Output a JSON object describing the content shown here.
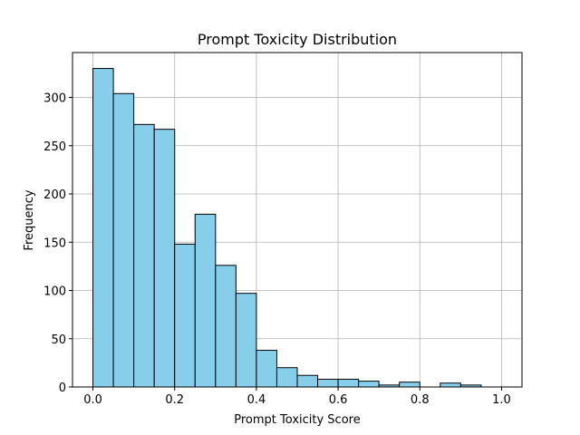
{
  "chart_data": {
    "type": "histogram",
    "title": "Prompt Toxicity Distribution",
    "x_label": "Prompt Toxicity Score",
    "y_label": "Frequency",
    "bins": [
      0,
      0.05,
      0.1,
      0.15,
      0.2,
      0.25,
      0.3,
      0.35,
      0.4,
      0.45,
      0.5,
      0.55,
      0.6,
      0.65,
      0.7,
      0.75,
      0.8,
      0.85,
      0.9,
      0.95,
      1
    ],
    "counts": [
      330,
      304,
      272,
      267,
      148,
      179,
      126,
      97,
      38,
      20,
      12,
      8,
      8,
      6,
      2,
      5,
      0,
      4,
      2,
      0
    ],
    "color": "#87ceeb",
    "edgecolor": "#000000",
    "xlim": [
      -0.05,
      1.05
    ],
    "ylim": [
      0,
      346.5
    ],
    "xticks": [
      {
        "value": 0,
        "label": "0.0"
      },
      0.2,
      0.4,
      0.6,
      0.8,
      {
        "value": 1,
        "label": "1.0"
      }
    ],
    "yticks": [
      0,
      50,
      100,
      150,
      200,
      250,
      300
    ],
    "grid": true
  }
}
